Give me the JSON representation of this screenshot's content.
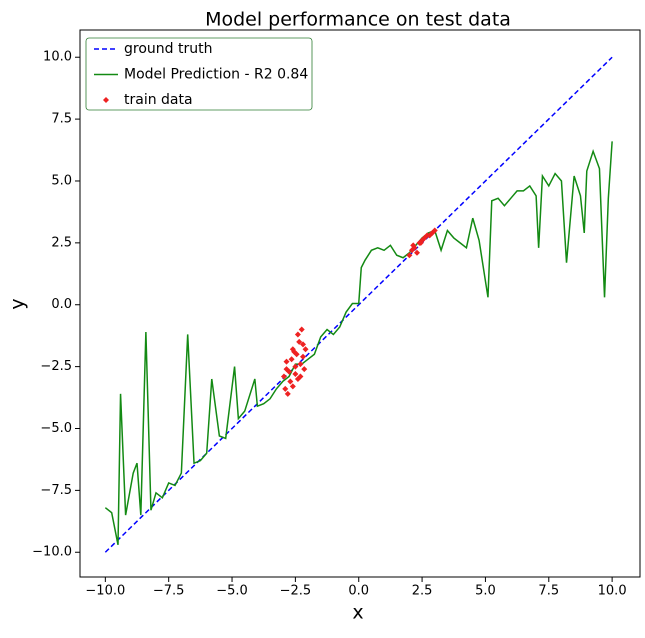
{
  "chart_data": {
    "type": "line",
    "title": "Model performance on test data",
    "xlabel": "x",
    "ylabel": "y",
    "xlim": [
      -11,
      11.1
    ],
    "ylim": [
      -11,
      11.1
    ],
    "xticks": [
      {
        "value": -10,
        "label": "−10.0"
      },
      {
        "value": -7.5,
        "label": "−7.5"
      },
      {
        "value": -5,
        "label": "−5.0"
      },
      {
        "value": -2.5,
        "label": "−2.5"
      },
      {
        "value": 0,
        "label": "0.0"
      },
      {
        "value": 2.5,
        "label": "2.5"
      },
      {
        "value": 5,
        "label": "5.0"
      },
      {
        "value": 7.5,
        "label": "7.5"
      },
      {
        "value": 10,
        "label": "10.0"
      }
    ],
    "yticks": [
      {
        "value": -10,
        "label": "−10.0"
      },
      {
        "value": -7.5,
        "label": "−7.5"
      },
      {
        "value": -5,
        "label": "−5.0"
      },
      {
        "value": -2.5,
        "label": "−2.5"
      },
      {
        "value": 0,
        "label": "0.0"
      },
      {
        "value": 2.5,
        "label": "2.5"
      },
      {
        "value": 5,
        "label": "5.0"
      },
      {
        "value": 7.5,
        "label": "7.5"
      },
      {
        "value": 10,
        "label": "10.0"
      }
    ],
    "legend": "upper left",
    "series": [
      {
        "name": "ground truth",
        "color": "#0000ff",
        "linestyle": "dashed",
        "x": [
          -10,
          10
        ],
        "values": [
          -10,
          10
        ]
      },
      {
        "name": "Model Prediction - R2 0.84",
        "color": "#138a13",
        "linestyle": "solid",
        "x": [
          -10,
          -9.75,
          -9.5,
          -9.4,
          -9.2,
          -8.9,
          -8.75,
          -8.6,
          -8.4,
          -8.2,
          -8,
          -7.75,
          -7.5,
          -7.25,
          -7,
          -6.75,
          -6.5,
          -6.25,
          -6,
          -5.8,
          -5.5,
          -5.25,
          -4.9,
          -4.75,
          -4.5,
          -4.1,
          -4,
          -3.75,
          -3.5,
          -3.25,
          -3,
          -2.75,
          -2.5,
          -2.25,
          -2,
          -1.75,
          -1.5,
          -1.25,
          -1,
          -0.75,
          -0.5,
          -0.25,
          0,
          0.1,
          0.25,
          0.5,
          0.75,
          1,
          1.25,
          1.5,
          1.75,
          2,
          2.25,
          2.5,
          2.75,
          3,
          3.25,
          3.5,
          3.75,
          4,
          4.25,
          4.5,
          4.75,
          5.1,
          5.25,
          5.5,
          5.75,
          6,
          6.25,
          6.5,
          6.75,
          7,
          7.1,
          7.25,
          7.5,
          7.75,
          8,
          8.2,
          8.5,
          8.75,
          8.9,
          9,
          9.25,
          9.5,
          9.7,
          9.85,
          10
        ],
        "values": [
          -8.2,
          -8.4,
          -9.7,
          -3.6,
          -8.5,
          -6.8,
          -6.4,
          -8.5,
          -1.1,
          -8.3,
          -7.6,
          -7.8,
          -7.2,
          -7.3,
          -6.8,
          -1.2,
          -6.4,
          -6.3,
          -6.0,
          -3.0,
          -5.3,
          -5.4,
          -2.5,
          -4.6,
          -4.3,
          -3.0,
          -4.1,
          -4.0,
          -3.8,
          -3.4,
          -3.1,
          -2.9,
          -2.4,
          -2.4,
          -2.2,
          -2.0,
          -1.3,
          -1.0,
          -1.2,
          -0.9,
          -0.3,
          0.05,
          0.05,
          1.5,
          1.8,
          2.2,
          2.3,
          2.2,
          2.4,
          2.0,
          1.9,
          2.1,
          2.4,
          2.7,
          2.9,
          3.0,
          2.2,
          3.0,
          2.7,
          2.5,
          2.3,
          3.5,
          2.6,
          0.3,
          4.2,
          4.3,
          4.0,
          4.3,
          4.6,
          4.6,
          4.8,
          4.4,
          2.3,
          5.2,
          4.8,
          5.3,
          5.0,
          1.7,
          5.2,
          4.4,
          2.9,
          5.4,
          6.2,
          5.5,
          0.3,
          4.3,
          6.6
        ]
      },
      {
        "name": "train data",
        "color": "#ee2222",
        "linestyle": "none",
        "marker": "D",
        "x": [
          -2.95,
          -2.9,
          -2.85,
          -2.8,
          -2.75,
          -2.7,
          -2.65,
          -2.6,
          -2.55,
          -2.5,
          -2.45,
          -2.4,
          -2.35,
          -2.3,
          -2.25,
          -2.2,
          -2.15,
          -2.1,
          -2.85,
          -2.6,
          -2.4,
          -2.3,
          -2.2,
          -2.5,
          2.0,
          2.1,
          2.2,
          2.3,
          2.4,
          2.5,
          2.6,
          2.7,
          2.8,
          2.9,
          3.0,
          2.15,
          2.45
        ],
        "values": [
          -2.9,
          -3.4,
          -2.6,
          -3.6,
          -2.7,
          -3.1,
          -2.2,
          -3.3,
          -1.9,
          -2.8,
          -2.0,
          -3.0,
          -1.5,
          -2.4,
          -1.0,
          -1.6,
          -2.6,
          -1.8,
          -2.3,
          -1.8,
          -1.2,
          -2.9,
          -2.1,
          -2.5,
          2.0,
          2.2,
          2.3,
          2.1,
          2.5,
          2.6,
          2.7,
          2.8,
          2.8,
          2.9,
          3.0,
          2.4,
          2.5
        ]
      }
    ]
  }
}
